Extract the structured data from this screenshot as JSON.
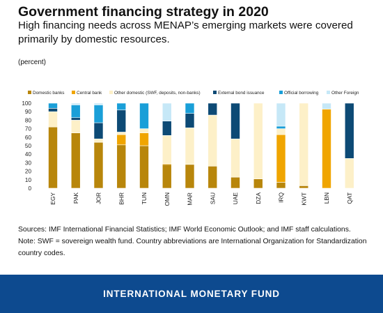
{
  "title": "Government financing strategy in 2020",
  "subtitle": "High financing needs across MENAP’s emerging markets were covered primarily by domestic resources.",
  "unit": "(percent)",
  "notes": [
    "Sources: IMF International Financial Statistics; IMF World Economic Outlook; and IMF staff calculations.",
    "Note: SWF = sovereign wealth fund. Country abbreviations are International Organization for Standardization",
    "country codes."
  ],
  "footer": "INTERNATIONAL MONETARY FUND",
  "chart_data": {
    "type": "bar",
    "stacked": true,
    "categories": [
      "EGY",
      "PAK",
      "JOR",
      "BHR",
      "TUN",
      "OMN",
      "MAR",
      "SAU",
      "UAE",
      "DZA",
      "IRQ",
      "KWT",
      "LBN",
      "QAT"
    ],
    "ylim": [
      0,
      100
    ],
    "yticks": [
      0,
      10,
      20,
      30,
      40,
      50,
      60,
      70,
      80,
      90,
      100
    ],
    "grid": false,
    "legend_position": "top",
    "series": [
      {
        "name": "Domestic banks",
        "color": "#b8860b",
        "values": [
          72,
          65,
          54,
          51,
          50,
          28,
          28,
          26,
          13,
          11,
          7,
          3,
          0,
          0
        ]
      },
      {
        "name": "Central bank",
        "color": "#f0a500",
        "values": [
          0,
          0,
          0,
          12,
          15,
          1,
          0,
          0,
          0,
          0,
          56,
          0,
          93,
          0
        ]
      },
      {
        "name": "Other domestic (SWF, deposits, non-banks)",
        "color": "#fdf0c8",
        "values": [
          18,
          15,
          4,
          3,
          5,
          33,
          43,
          60,
          45,
          89,
          7,
          97,
          0,
          35
        ]
      },
      {
        "name": "External bond issuance",
        "color": "#0d4a75",
        "values": [
          4,
          3,
          19,
          26,
          0,
          17,
          17,
          14,
          42,
          0,
          0,
          0,
          0,
          65
        ]
      },
      {
        "name": "Official borrowing",
        "color": "#1a9fd8",
        "values": [
          6,
          15,
          21,
          8,
          30,
          0,
          12,
          0,
          0,
          0,
          3,
          0,
          0,
          0
        ]
      },
      {
        "name": "Other Foreign",
        "color": "#c6e8f7",
        "values": [
          0,
          2,
          2,
          0,
          0,
          21,
          0,
          0,
          0,
          0,
          27,
          0,
          7,
          0
        ]
      }
    ]
  }
}
